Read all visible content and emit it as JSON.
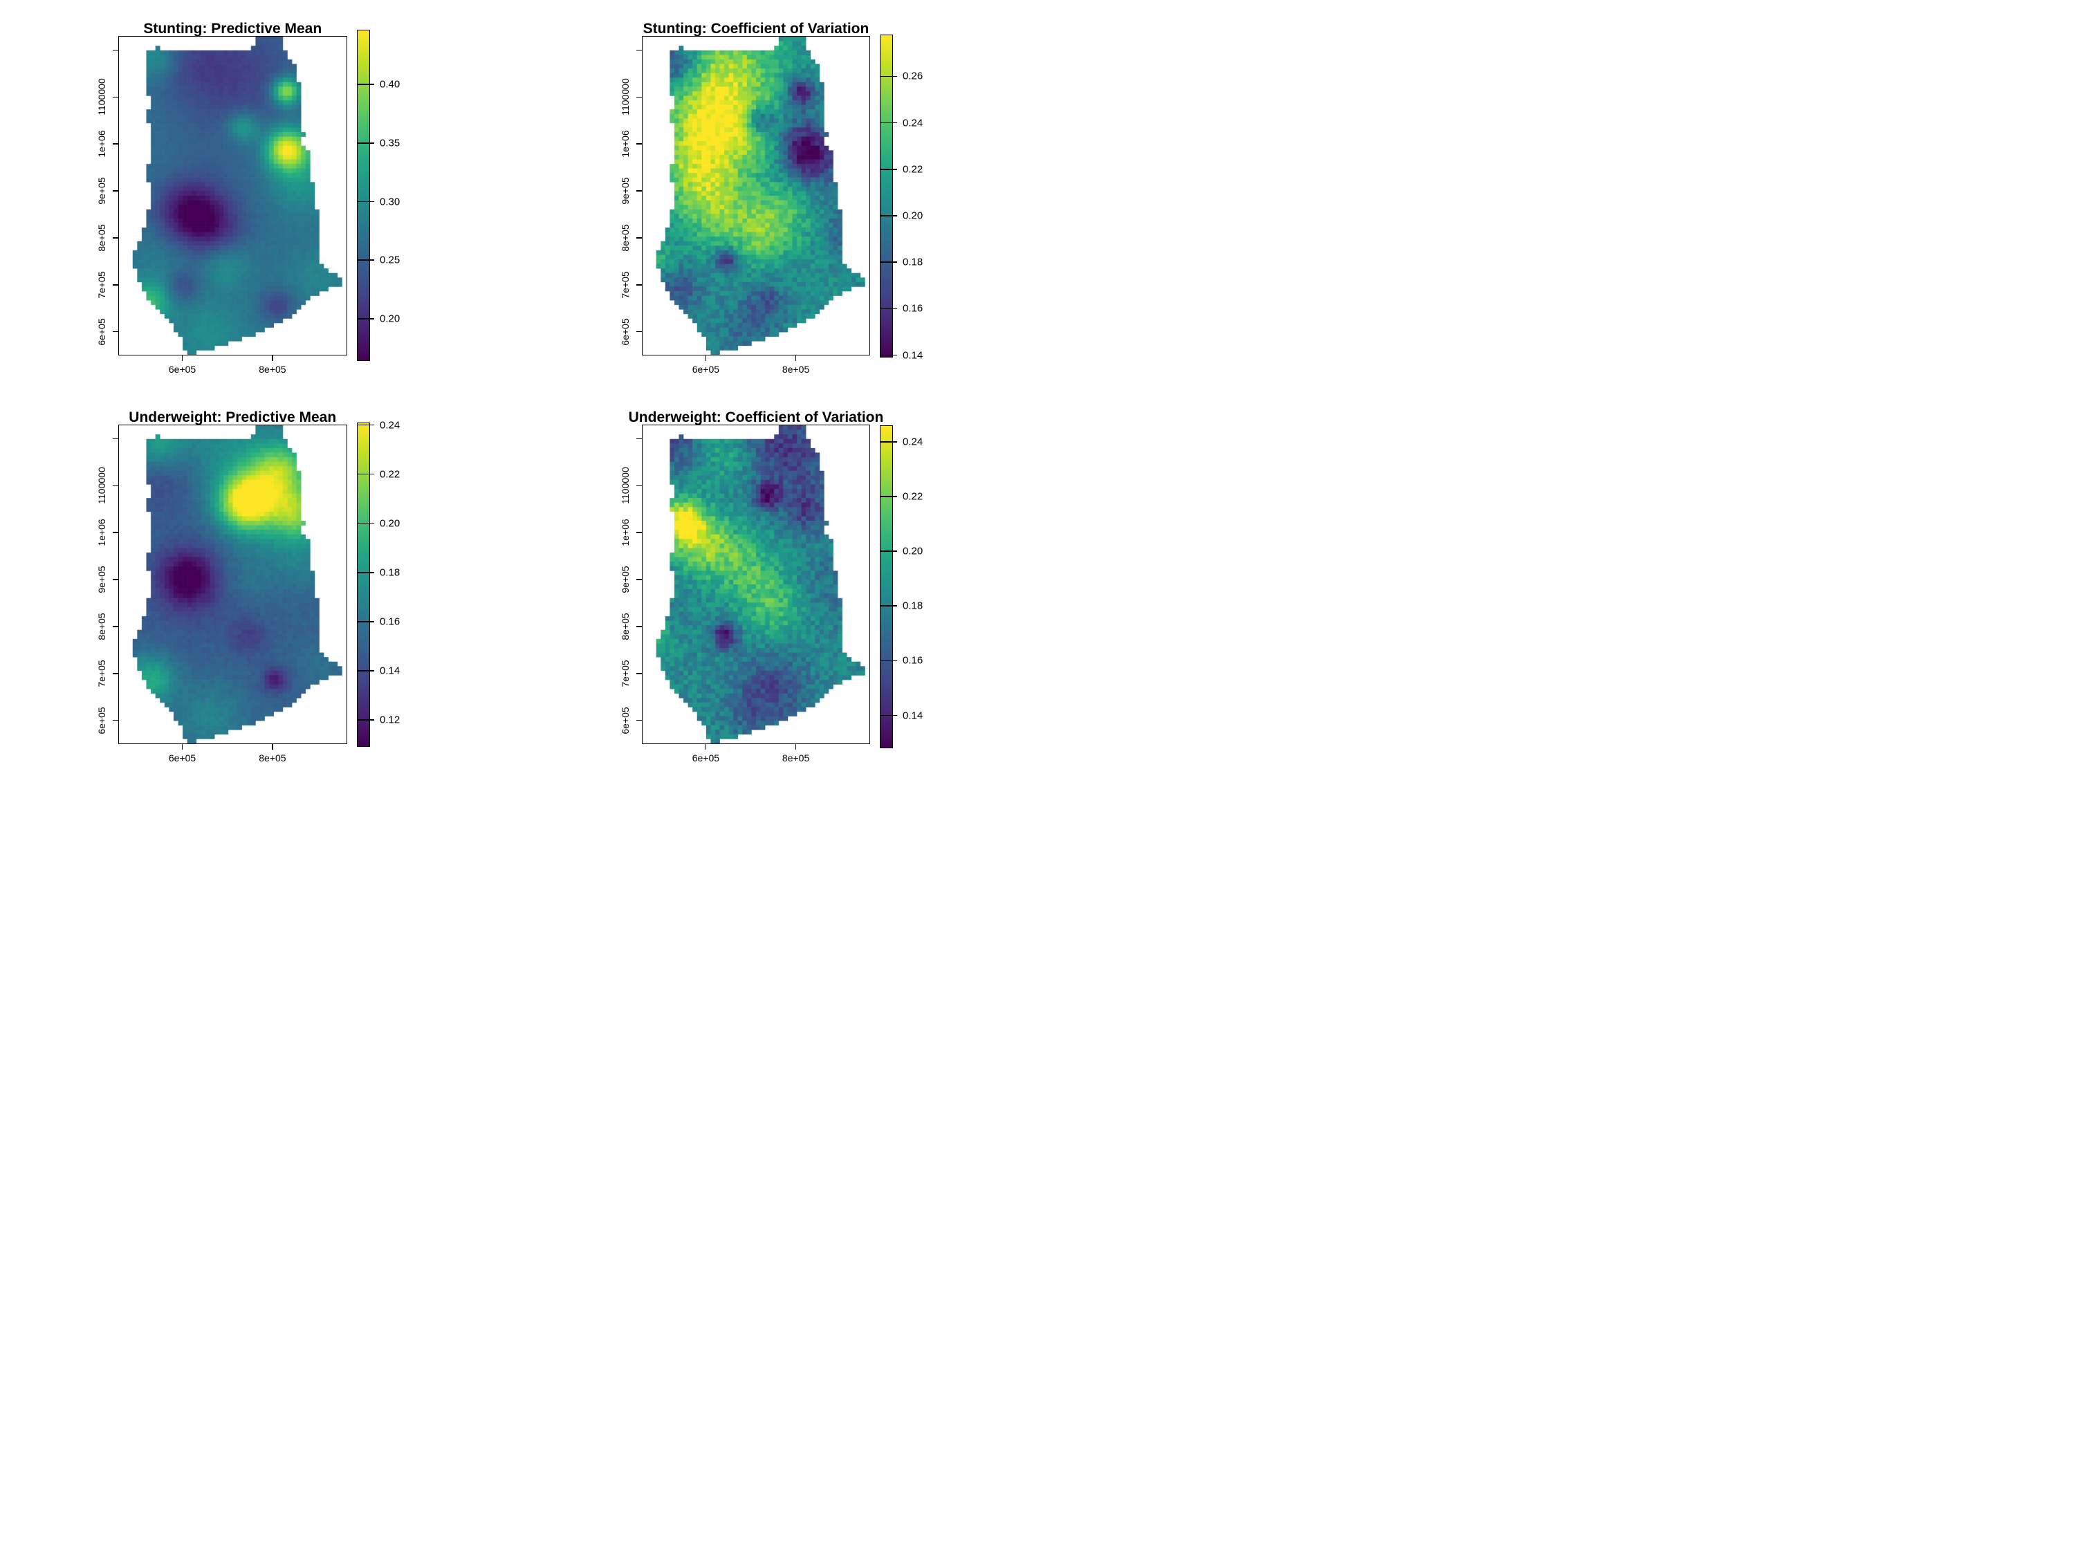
{
  "figure": {
    "background": "#ffffff",
    "frame_color": "#000000"
  },
  "chart_data": {
    "type": "heatmap",
    "layout": "2x2",
    "grid": {
      "cols": 50,
      "rows": 70
    },
    "x_axis": {
      "range": [
        458000,
        965000
      ],
      "ticks": [
        {
          "value": 600000,
          "label": "6e+05"
        },
        {
          "value": 800000,
          "label": "8e+05"
        }
      ]
    },
    "y_axis": {
      "range": [
        550000,
        1231000
      ],
      "ticks": [
        {
          "value": 600000,
          "label": "6e+05"
        },
        {
          "value": 700000,
          "label": "7e+05"
        },
        {
          "value": 800000,
          "label": "8e+05"
        },
        {
          "value": 900000,
          "label": "9e+05"
        },
        {
          "value": 1000000,
          "label": "1e+06"
        },
        {
          "value": 1100000,
          "label": "1100000"
        },
        {
          "value": 1200000,
          "label": ""
        }
      ]
    },
    "colormap_stops": [
      "#440154",
      "#482475",
      "#414487",
      "#355f8d",
      "#2a788e",
      "#21918c",
      "#22a884",
      "#44bf70",
      "#7ad151",
      "#bddf26",
      "#fde725"
    ],
    "region_outline_frac": [
      [
        0.115,
        0.05
      ],
      [
        0.17,
        0.035
      ],
      [
        0.24,
        0.048
      ],
      [
        0.43,
        0.04
      ],
      [
        0.58,
        0.048
      ],
      [
        0.6,
        0.005
      ],
      [
        0.72,
        0.005
      ],
      [
        0.735,
        0.06
      ],
      [
        0.78,
        0.09
      ],
      [
        0.78,
        0.13
      ],
      [
        0.805,
        0.15
      ],
      [
        0.79,
        0.19
      ],
      [
        0.81,
        0.225
      ],
      [
        0.79,
        0.265
      ],
      [
        0.815,
        0.3
      ],
      [
        0.8,
        0.34
      ],
      [
        0.84,
        0.37
      ],
      [
        0.835,
        0.42
      ],
      [
        0.86,
        0.47
      ],
      [
        0.85,
        0.52
      ],
      [
        0.875,
        0.55
      ],
      [
        0.87,
        0.6
      ],
      [
        0.89,
        0.64
      ],
      [
        0.875,
        0.68
      ],
      [
        0.89,
        0.72
      ],
      [
        0.93,
        0.74
      ],
      [
        0.985,
        0.76
      ],
      [
        0.975,
        0.78
      ],
      [
        0.9,
        0.795
      ],
      [
        0.86,
        0.815
      ],
      [
        0.8,
        0.85
      ],
      [
        0.74,
        0.885
      ],
      [
        0.68,
        0.91
      ],
      [
        0.6,
        0.935
      ],
      [
        0.52,
        0.955
      ],
      [
        0.44,
        0.975
      ],
      [
        0.36,
        0.99
      ],
      [
        0.31,
        1.0
      ],
      [
        0.285,
        0.975
      ],
      [
        0.27,
        0.945
      ],
      [
        0.24,
        0.91
      ],
      [
        0.2,
        0.88
      ],
      [
        0.165,
        0.855
      ],
      [
        0.135,
        0.835
      ],
      [
        0.115,
        0.8
      ],
      [
        0.085,
        0.765
      ],
      [
        0.065,
        0.725
      ],
      [
        0.07,
        0.675
      ],
      [
        0.095,
        0.635
      ],
      [
        0.115,
        0.59
      ],
      [
        0.13,
        0.545
      ],
      [
        0.14,
        0.5
      ],
      [
        0.15,
        0.475
      ],
      [
        0.128,
        0.455
      ],
      [
        0.127,
        0.4
      ],
      [
        0.145,
        0.375
      ],
      [
        0.133,
        0.33
      ],
      [
        0.14,
        0.29
      ],
      [
        0.124,
        0.25
      ],
      [
        0.135,
        0.21
      ],
      [
        0.122,
        0.16
      ],
      [
        0.13,
        0.115
      ],
      [
        0.118,
        0.07
      ]
    ],
    "panels": [
      {
        "title": "Stunting: Predictive Mean",
        "colorbar": {
          "vmin": 0.164,
          "vmax": 0.447,
          "ticks": [
            {
              "value": 0.4,
              "label": "0.40"
            },
            {
              "value": 0.35,
              "label": "0.35"
            },
            {
              "value": 0.3,
              "label": "0.30"
            },
            {
              "value": 0.25,
              "label": "0.25"
            },
            {
              "value": 0.2,
              "label": "0.20"
            }
          ]
        },
        "field": {
          "base": 0.272,
          "noise": 0.004,
          "seed": 11,
          "bumps": [
            [
              0.48,
              0.1,
              0.2,
              -0.042
            ],
            [
              0.3,
              0.08,
              0.12,
              -0.018
            ],
            [
              0.16,
              0.07,
              0.07,
              0.045
            ],
            [
              0.6,
              0.22,
              0.25,
              -0.015
            ],
            [
              0.735,
              0.172,
              0.042,
              0.155
            ],
            [
              0.545,
              0.285,
              0.05,
              0.07
            ],
            [
              0.735,
              0.355,
              0.062,
              0.155
            ],
            [
              0.79,
              0.37,
              0.1,
              0.04
            ],
            [
              0.8,
              0.47,
              0.09,
              0.028
            ],
            [
              0.315,
              0.555,
              0.095,
              -0.085
            ],
            [
              0.43,
              0.6,
              0.09,
              -0.04
            ],
            [
              0.33,
              0.57,
              0.17,
              -0.028
            ],
            [
              0.47,
              0.72,
              0.07,
              0.04
            ],
            [
              0.135,
              0.835,
              0.065,
              0.085
            ],
            [
              0.28,
              0.785,
              0.05,
              -0.04
            ],
            [
              0.695,
              0.845,
              0.05,
              -0.05
            ],
            [
              0.4,
              0.93,
              0.1,
              0.03
            ],
            [
              0.2,
              0.68,
              0.1,
              0.02
            ],
            [
              0.88,
              0.75,
              0.08,
              0.02
            ]
          ]
        }
      },
      {
        "title": "Stunting: Coefficient of Variation",
        "colorbar": {
          "vmin": 0.139,
          "vmax": 0.278,
          "ticks": [
            {
              "value": 0.26,
              "label": "0.26"
            },
            {
              "value": 0.24,
              "label": "0.24"
            },
            {
              "value": 0.22,
              "label": "0.22"
            },
            {
              "value": 0.2,
              "label": "0.20"
            },
            {
              "value": 0.18,
              "label": "0.18"
            },
            {
              "value": 0.16,
              "label": "0.16"
            },
            {
              "value": 0.14,
              "label": "0.14"
            }
          ]
        },
        "field": {
          "base": 0.206,
          "noise": 0.012,
          "seed": 22,
          "bumps": [
            [
              0.14,
              0.08,
              0.08,
              -0.042
            ],
            [
              0.38,
              0.1,
              0.16,
              0.046
            ],
            [
              0.3,
              0.27,
              0.14,
              0.05
            ],
            [
              0.25,
              0.43,
              0.13,
              0.045
            ],
            [
              0.34,
              0.56,
              0.11,
              0.032
            ],
            [
              0.5,
              0.3,
              0.1,
              0.026
            ],
            [
              0.52,
              0.265,
              0.045,
              -0.055
            ],
            [
              0.7,
              0.175,
              0.045,
              -0.058
            ],
            [
              0.73,
              0.37,
              0.07,
              -0.062
            ],
            [
              0.67,
              0.3,
              0.08,
              -0.025
            ],
            [
              0.86,
              0.45,
              0.14,
              -0.018
            ],
            [
              0.62,
              0.55,
              0.11,
              0.03
            ],
            [
              0.52,
              0.63,
              0.09,
              0.026
            ],
            [
              0.37,
              0.7,
              0.035,
              -0.058
            ],
            [
              0.16,
              0.8,
              0.07,
              -0.03
            ],
            [
              0.55,
              0.83,
              0.06,
              -0.026
            ],
            [
              0.47,
              0.93,
              0.1,
              -0.02
            ],
            [
              0.07,
              0.7,
              0.05,
              0.018
            ],
            [
              0.88,
              0.62,
              0.05,
              -0.02
            ]
          ]
        }
      },
      {
        "title": "Underweight: Predictive Mean",
        "colorbar": {
          "vmin": 0.109,
          "vmax": 0.241,
          "ticks": [
            {
              "value": 0.24,
              "label": "0.24"
            },
            {
              "value": 0.22,
              "label": "0.22"
            },
            {
              "value": 0.2,
              "label": "0.20"
            },
            {
              "value": 0.18,
              "label": "0.18"
            },
            {
              "value": 0.16,
              "label": "0.16"
            },
            {
              "value": 0.14,
              "label": "0.14"
            },
            {
              "value": 0.12,
              "label": "0.12"
            }
          ]
        },
        "field": {
          "base": 0.15,
          "noise": 0.003,
          "seed": 33,
          "bumps": [
            [
              0.45,
              0.05,
              0.14,
              0.018
            ],
            [
              0.17,
              0.06,
              0.08,
              0.032
            ],
            [
              0.2,
              0.17,
              0.1,
              -0.012
            ],
            [
              0.56,
              0.24,
              0.085,
              0.085
            ],
            [
              0.71,
              0.14,
              0.09,
              0.05
            ],
            [
              0.78,
              0.28,
              0.08,
              0.048
            ],
            [
              0.66,
              0.23,
              0.16,
              0.028
            ],
            [
              0.8,
              0.43,
              0.09,
              0.012
            ],
            [
              0.3,
              0.48,
              0.08,
              -0.038
            ],
            [
              0.33,
              0.5,
              0.15,
              -0.014
            ],
            [
              0.56,
              0.48,
              0.09,
              0.01
            ],
            [
              0.57,
              0.665,
              0.06,
              -0.016
            ],
            [
              0.685,
              0.8,
              0.04,
              -0.03
            ],
            [
              0.14,
              0.8,
              0.075,
              0.04
            ],
            [
              0.4,
              0.92,
              0.11,
              0.018
            ],
            [
              0.88,
              0.75,
              0.07,
              0.008
            ]
          ]
        }
      },
      {
        "title": "Underweight: Coefficient of Variation",
        "colorbar": {
          "vmin": 0.128,
          "vmax": 0.246,
          "ticks": [
            {
              "value": 0.24,
              "label": "0.24"
            },
            {
              "value": 0.22,
              "label": "0.22"
            },
            {
              "value": 0.2,
              "label": "0.20"
            },
            {
              "value": 0.18,
              "label": "0.18"
            },
            {
              "value": 0.16,
              "label": "0.16"
            },
            {
              "value": 0.14,
              "label": "0.14"
            }
          ]
        },
        "field": {
          "base": 0.183,
          "noise": 0.011,
          "seed": 44,
          "bumps": [
            [
              0.15,
              0.06,
              0.08,
              -0.028
            ],
            [
              0.38,
              0.09,
              0.11,
              0.018
            ],
            [
              0.68,
              0.1,
              0.16,
              -0.028
            ],
            [
              0.55,
              0.03,
              0.1,
              -0.016
            ],
            [
              0.55,
              0.22,
              0.042,
              -0.046
            ],
            [
              0.72,
              0.27,
              0.06,
              -0.026
            ],
            [
              0.17,
              0.295,
              0.065,
              0.052
            ],
            [
              0.23,
              0.355,
              0.085,
              0.038
            ],
            [
              0.36,
              0.4,
              0.11,
              0.024
            ],
            [
              0.48,
              0.46,
              0.1,
              0.016
            ],
            [
              0.58,
              0.57,
              0.1,
              0.026
            ],
            [
              0.365,
              0.66,
              0.04,
              -0.05
            ],
            [
              0.06,
              0.68,
              0.05,
              0.022
            ],
            [
              0.58,
              0.82,
              0.11,
              -0.024
            ],
            [
              0.5,
              0.91,
              0.09,
              -0.016
            ],
            [
              0.85,
              0.5,
              0.12,
              -0.012
            ]
          ]
        }
      }
    ]
  }
}
